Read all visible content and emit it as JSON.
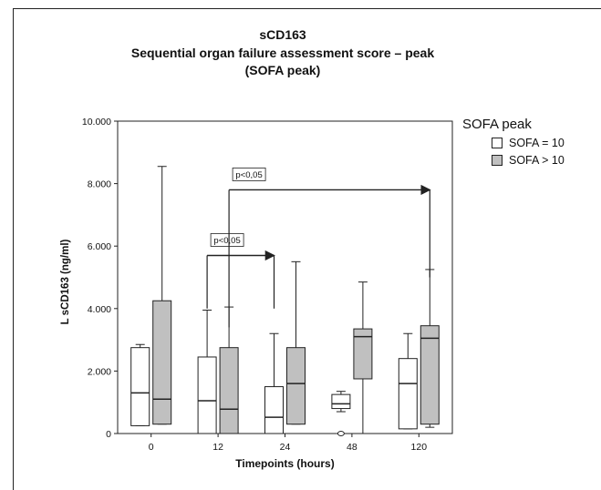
{
  "chart_data": {
    "type": "boxplot",
    "title_lines": [
      "sCD163",
      "Sequential organ failure assessment score – peak",
      "(SOFA peak)"
    ],
    "xlabel": "Timepoints (hours)",
    "ylabel": "L sCD163 (ng/ml)",
    "ylim": [
      0,
      10000
    ],
    "yticks": [
      0,
      2000,
      4000,
      6000,
      8000,
      10000
    ],
    "ytick_labels": [
      "0",
      "2.000",
      "4.000",
      "6.000",
      "8.000",
      "10.000"
    ],
    "categories": [
      "0",
      "12",
      "24",
      "48",
      "120"
    ],
    "legend": {
      "title": "SOFA peak",
      "position": "right",
      "items": [
        {
          "label": "SOFA = 10",
          "color": "#ffffff"
        },
        {
          "label": "SOFA > 10",
          "color": "#c0c0c0"
        }
      ]
    },
    "series": [
      {
        "name": "SOFA = 10",
        "color": "#ffffff",
        "boxes": [
          {
            "min": 250,
            "q1": 250,
            "median": 1300,
            "q3": 2750,
            "max": 2850
          },
          {
            "min": 0,
            "q1": 0,
            "median": 1050,
            "q3": 2450,
            "max": 3950
          },
          {
            "min": 0,
            "q1": 0,
            "median": 520,
            "q3": 1500,
            "max": 3200
          },
          {
            "min": 700,
            "q1": 800,
            "median": 950,
            "q3": 1250,
            "max": 1350,
            "outliers": [
              0
            ]
          },
          {
            "min": 150,
            "q1": 150,
            "median": 1600,
            "q3": 2400,
            "max": 3200
          }
        ]
      },
      {
        "name": "SOFA > 10",
        "color": "#c0c0c0",
        "boxes": [
          {
            "min": 300,
            "q1": 300,
            "median": 1100,
            "q3": 4250,
            "max": 8550
          },
          {
            "min": 0,
            "q1": 0,
            "median": 780,
            "q3": 2750,
            "max": 4050
          },
          {
            "min": 300,
            "q1": 300,
            "median": 1600,
            "q3": 2750,
            "max": 5500
          },
          {
            "min": 0,
            "q1": 1750,
            "median": 3100,
            "q3": 3350,
            "max": 4850
          },
          {
            "min": 200,
            "q1": 300,
            "median": 3050,
            "q3": 3450,
            "max": 5250
          }
        ]
      }
    ],
    "annotations": [
      {
        "label": "p<0,05",
        "from_category": "12",
        "to_category": "24",
        "y": 5700
      },
      {
        "label": "p<0,05",
        "from_category": "12",
        "to_category": "120",
        "y": 7800
      }
    ]
  }
}
